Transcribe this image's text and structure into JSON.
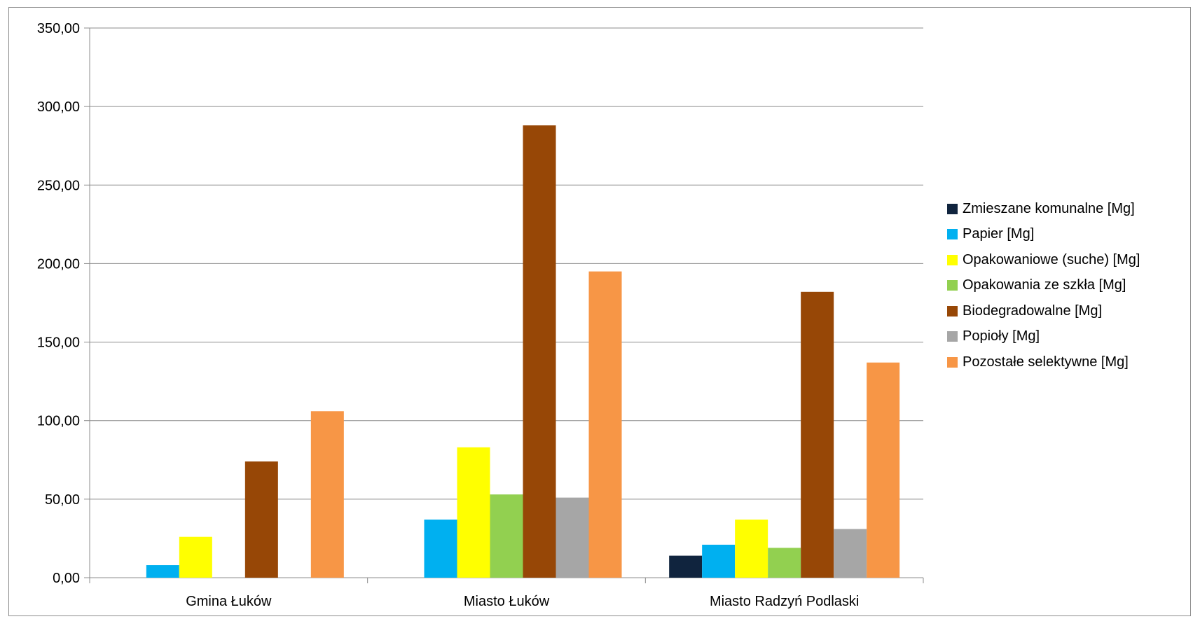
{
  "chart_data": {
    "type": "bar",
    "title": "",
    "xlabel": "",
    "ylabel": "",
    "ylim": [
      0,
      350
    ],
    "yticks": [
      "0,00",
      "50,00",
      "100,00",
      "150,00",
      "200,00",
      "250,00",
      "300,00",
      "350,00"
    ],
    "categories": [
      "Gmina Łuków",
      "Miasto Łuków",
      "Miasto Radzyń Podlaski"
    ],
    "grid": true,
    "legend_position": "right",
    "series": [
      {
        "name": "Zmieszane komunalne [Mg]",
        "color": "#10243e",
        "values": [
          0,
          0,
          14
        ]
      },
      {
        "name": "Papier [Mg]",
        "color": "#00b0f0",
        "values": [
          8,
          37,
          21
        ]
      },
      {
        "name": "Opakowaniowe (suche) [Mg]",
        "color": "#ffff00",
        "values": [
          26,
          83,
          37
        ]
      },
      {
        "name": "Opakowania ze szkła [Mg]",
        "color": "#92d050",
        "values": [
          0,
          53,
          19
        ]
      },
      {
        "name": "Biodegradowalne [Mg]",
        "color": "#974706",
        "values": [
          74,
          288,
          182
        ]
      },
      {
        "name": "Popioły [Mg]",
        "color": "#a6a6a6",
        "values": [
          0,
          51,
          31
        ]
      },
      {
        "name": "Pozostałe selektywne [Mg]",
        "color": "#f79646",
        "values": [
          106,
          195,
          137
        ]
      }
    ]
  }
}
